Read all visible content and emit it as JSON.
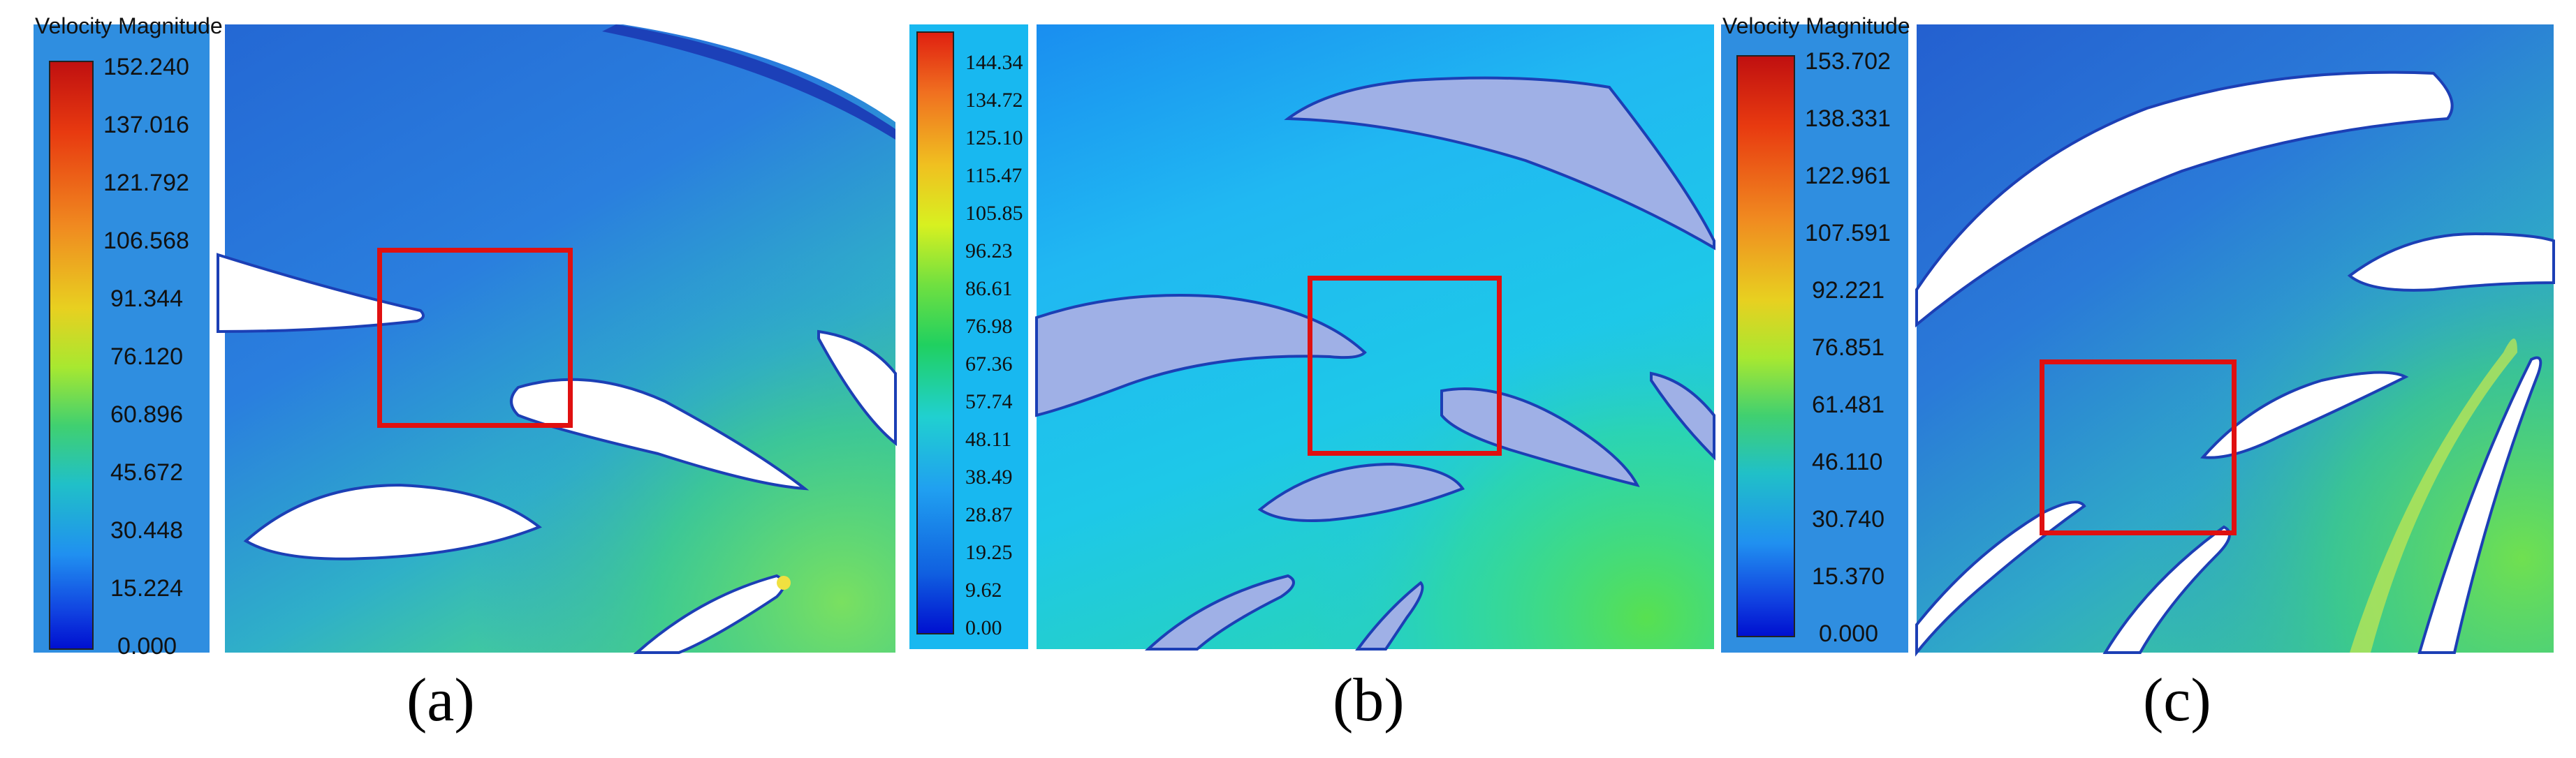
{
  "panels": [
    {
      "id": "a",
      "caption": "(a)",
      "legend": {
        "title": "Velocity Magnitude",
        "ticks": [
          "152.240",
          "137.016",
          "121.792",
          "106.568",
          "91.344",
          "76.120",
          "60.896",
          "45.672",
          "30.448",
          "15.224",
          "0.000"
        ]
      }
    },
    {
      "id": "b",
      "caption": "(b)",
      "legend": {
        "title": "",
        "ticks": [
          "144.34",
          "134.72",
          "125.10",
          "115.47",
          "105.85",
          "96.23",
          "86.61",
          "76.98",
          "67.36",
          "57.74",
          "48.11",
          "38.49",
          "28.87",
          "19.25",
          "9.62",
          "0.00"
        ]
      }
    },
    {
      "id": "c",
      "caption": "(c)",
      "legend": {
        "title": "Velocity Magnitude",
        "ticks": [
          "153.702",
          "138.331",
          "122.961",
          "107.591",
          "92.221",
          "76.851",
          "61.481",
          "46.110",
          "30.740",
          "15.370",
          "0.000"
        ]
      }
    }
  ],
  "colors": {
    "highlight": "#e01010",
    "field_dark_blue": "#2a6fd6",
    "field_cyan": "#18c6ee",
    "field_green": "#3fdc78",
    "blade_white": "#ffffff",
    "blade_lavender": "#9fb0e6"
  }
}
